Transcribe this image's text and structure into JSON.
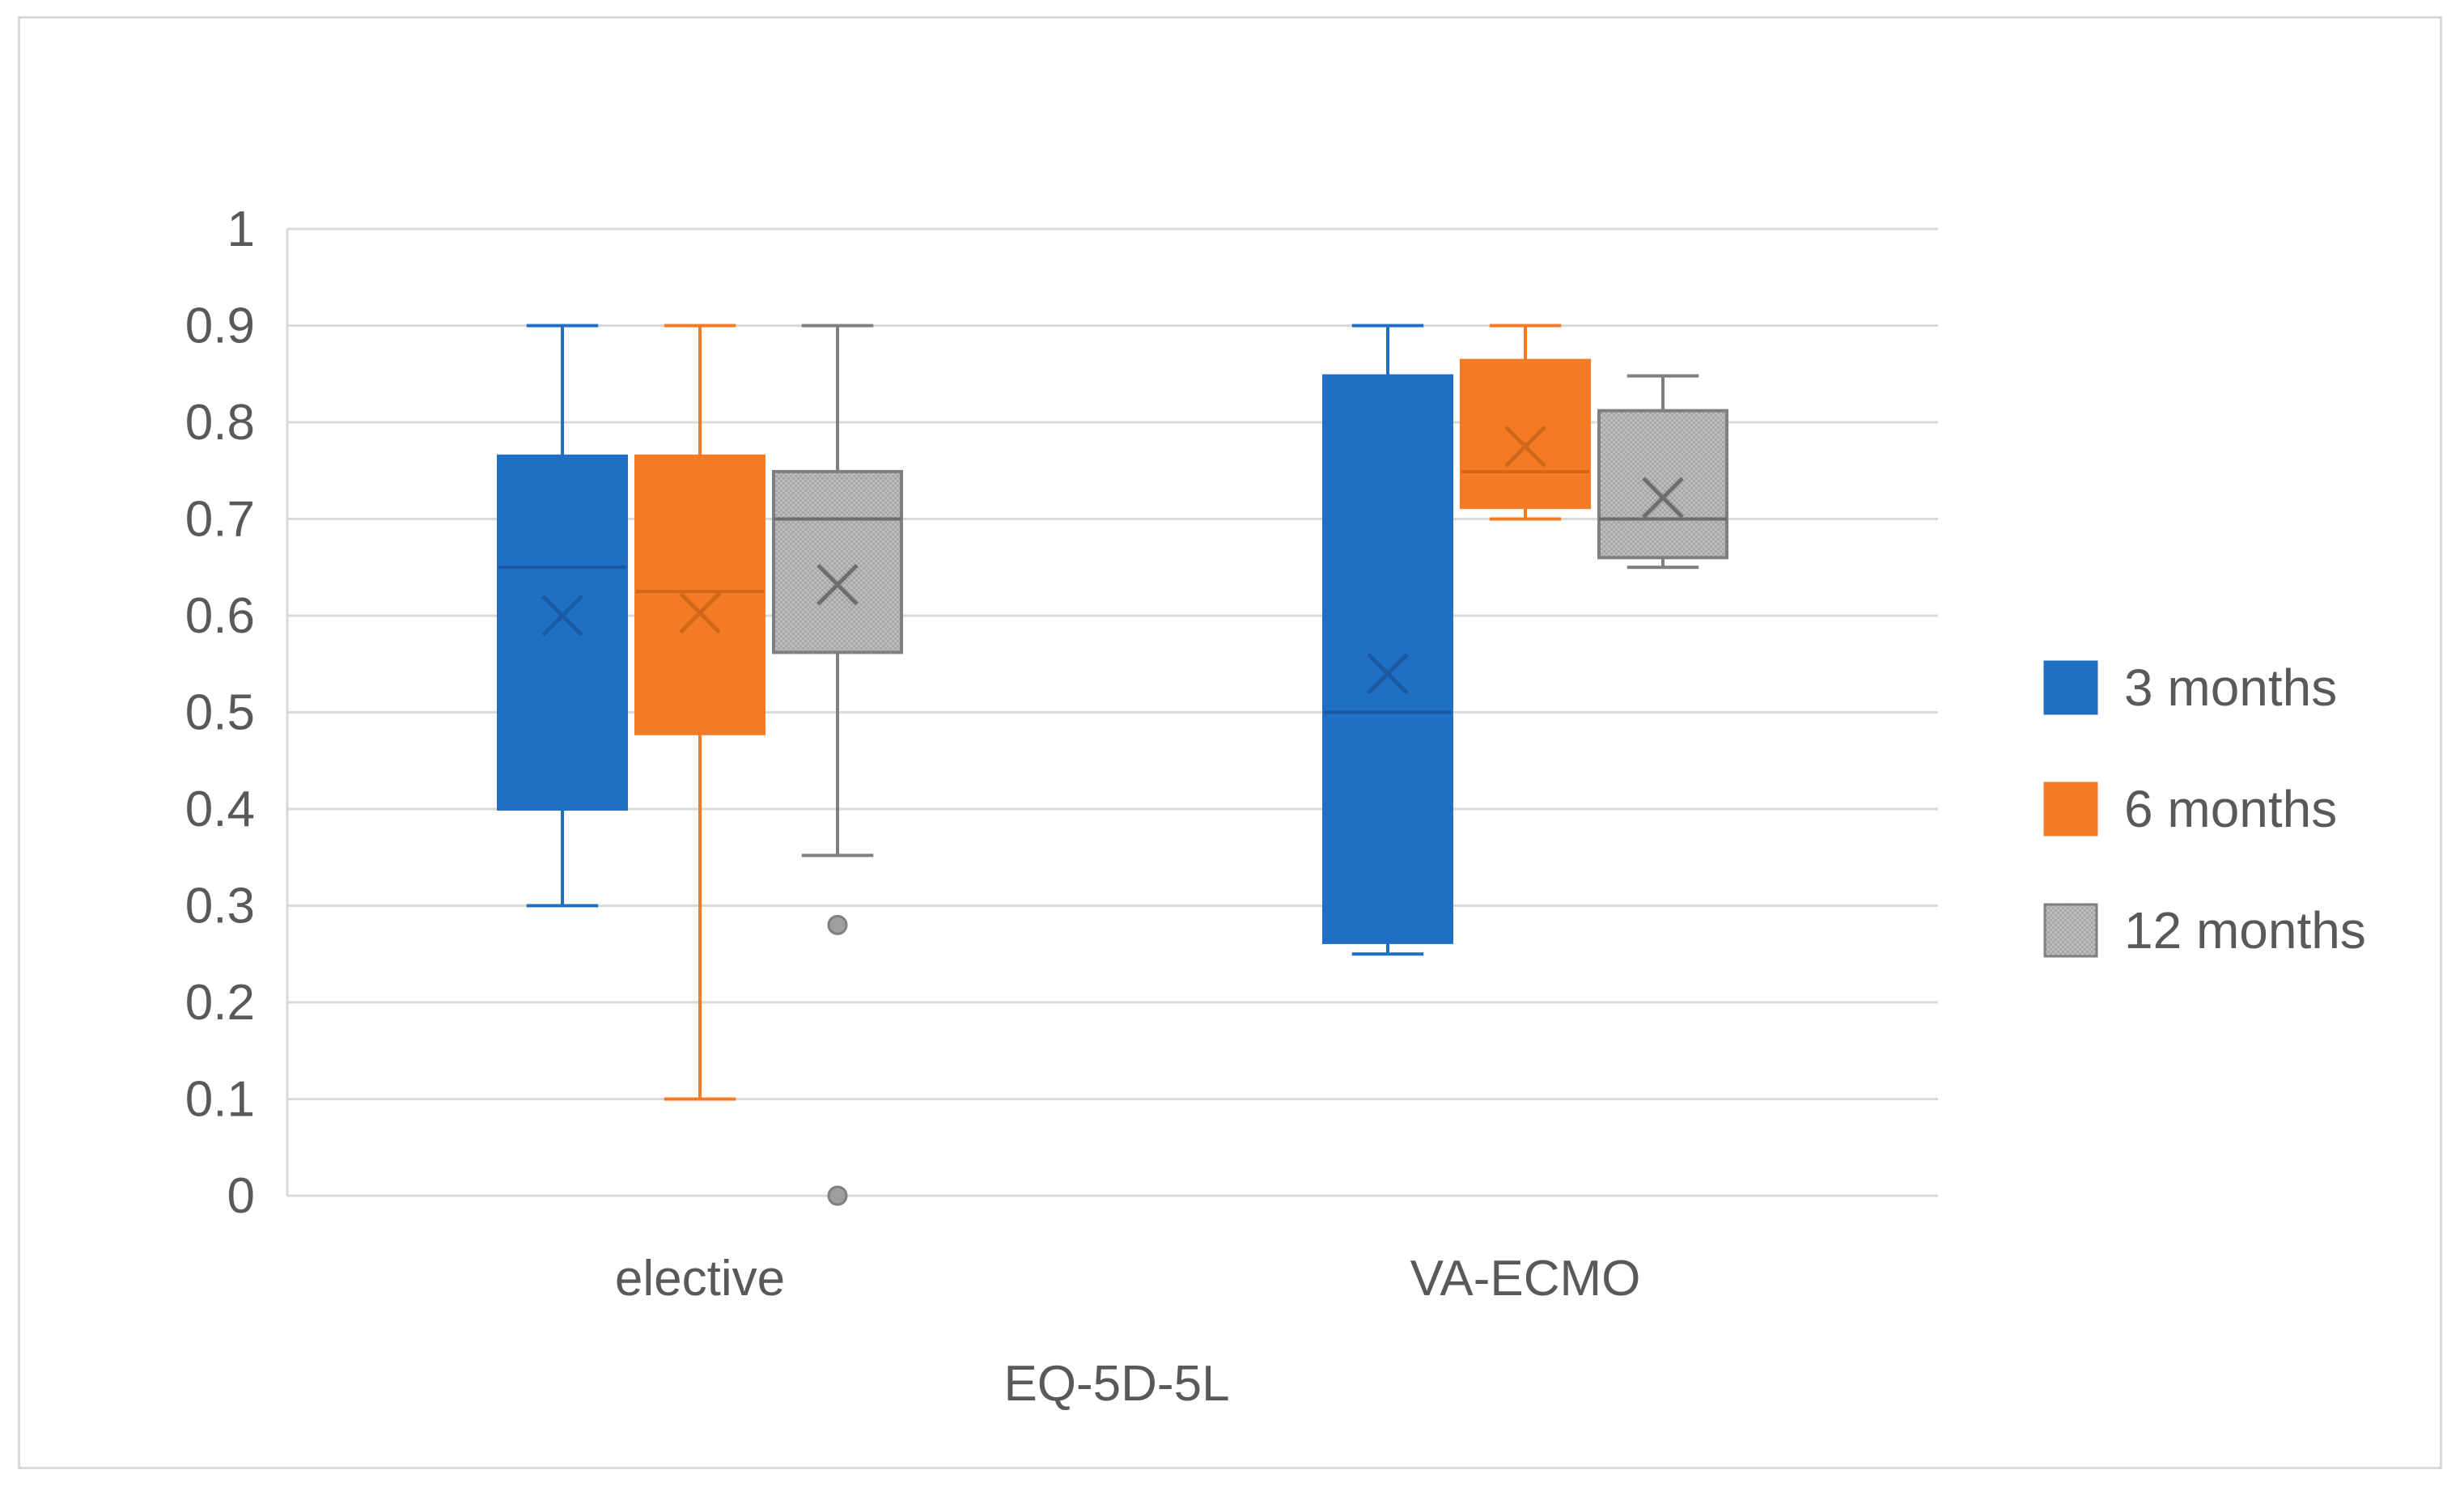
{
  "chart_data": {
    "type": "box",
    "title": "",
    "xlabel": "EQ-5D-5L",
    "ylabel": "",
    "ylim": [
      0,
      1
    ],
    "yticks": [
      "0",
      "0.1",
      "0.2",
      "0.3",
      "0.4",
      "0.5",
      "0.6",
      "0.7",
      "0.8",
      "0.9",
      "1"
    ],
    "grid": true,
    "legend_position": "right",
    "categories": [
      "elective",
      "VA-ECMO"
    ],
    "series": [
      {
        "name": "3 months",
        "color": "#1f6fc5",
        "boxes": [
          {
            "min": 0.3,
            "q1": 0.4,
            "median": 0.65,
            "q3": 0.765,
            "max": 0.9,
            "mean": 0.6,
            "outliers": []
          },
          {
            "min": 0.25,
            "q1": 0.262,
            "median": 0.5,
            "q3": 0.848,
            "max": 0.9,
            "mean": 0.54,
            "outliers": []
          }
        ]
      },
      {
        "name": "6 months",
        "color": "#f47b25",
        "boxes": [
          {
            "min": 0.1,
            "q1": 0.478,
            "median": 0.625,
            "q3": 0.765,
            "max": 0.9,
            "mean": 0.603,
            "outliers": []
          },
          {
            "min": 0.7,
            "q1": 0.712,
            "median": 0.749,
            "q3": 0.864,
            "max": 0.9,
            "mean": 0.775,
            "outliers": []
          }
        ]
      },
      {
        "name": "12 months",
        "color": "#a6a6a6",
        "boxes": [
          {
            "min": 0.352,
            "q1": 0.562,
            "median": 0.7,
            "q3": 0.749,
            "max": 0.9,
            "mean": 0.632,
            "outliers": [
              0.28,
              0.0
            ]
          },
          {
            "min": 0.65,
            "q1": 0.66,
            "median": 0.7,
            "q3": 0.812,
            "max": 0.848,
            "mean": 0.722,
            "outliers": []
          }
        ]
      }
    ]
  }
}
